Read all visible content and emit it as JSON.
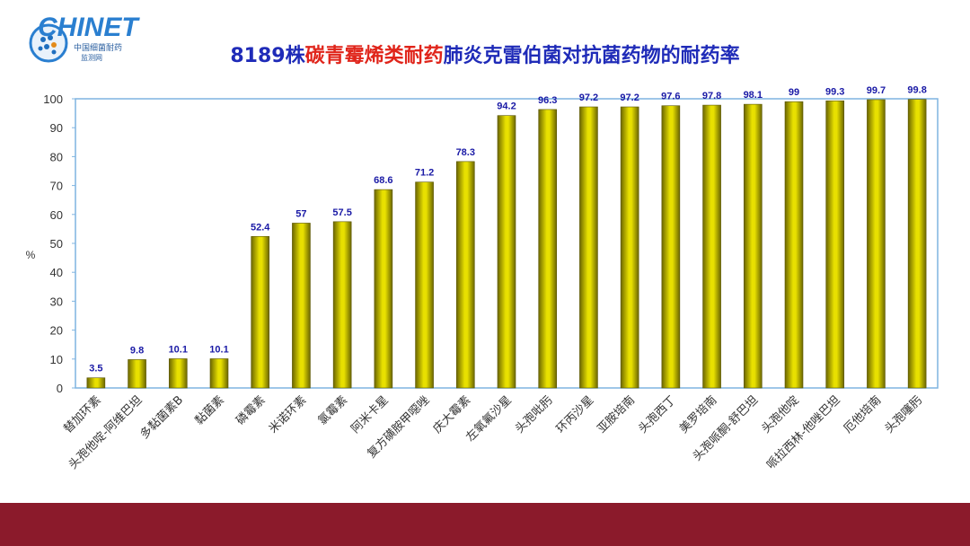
{
  "logo": {
    "brand": "CHINET",
    "subtitle_line1": "中国细菌耐药",
    "subtitle_line2": "监测网"
  },
  "title": {
    "part1": "8189株",
    "part2": "碳青霉烯类耐药",
    "part3": "肺炎克雷伯菌对抗菌药物的耐药率"
  },
  "chart_data": {
    "type": "bar",
    "ylabel": "%",
    "ylim": [
      0,
      100
    ],
    "yticks": [
      0,
      10,
      20,
      30,
      40,
      50,
      60,
      70,
      80,
      90,
      100
    ],
    "grid": false,
    "categories": [
      "替加环素",
      "头孢他啶-阿维巴坦",
      "多黏菌素B",
      "黏菌素",
      "磷霉素",
      "米诺环素",
      "氯霉素",
      "阿米卡星",
      "复方磺胺甲噁唑",
      "庆大霉素",
      "左氧氟沙星",
      "头孢吡肟",
      "环丙沙星",
      "亚胺培南",
      "头孢西丁",
      "美罗培南",
      "头孢哌酮-舒巴坦",
      "头孢他啶",
      "哌拉西林-他唑巴坦",
      "厄他培南",
      "头孢噻肟"
    ],
    "values": [
      3.5,
      9.8,
      10.1,
      10.1,
      52.4,
      57,
      57.5,
      68.6,
      71.2,
      78.3,
      94.2,
      96.3,
      97.2,
      97.2,
      97.6,
      97.8,
      98.1,
      99,
      99.3,
      99.7,
      99.8
    ],
    "value_labels": [
      "3.5",
      "9.8",
      "10.1",
      "10.1",
      "52.4",
      "57",
      "57.5",
      "68.6",
      "71.2",
      "78.3",
      "94.2",
      "96.3",
      "97.2",
      "97.2",
      "97.6",
      "97.8",
      "98.1",
      "99",
      "99.3",
      "99.7",
      "99.8"
    ],
    "colors": {
      "bar": "#e8e000",
      "bar_dark": "#6b6600",
      "value_label": "#1a1aa6",
      "axis": "#7fb4e0",
      "text": "#333333"
    }
  }
}
